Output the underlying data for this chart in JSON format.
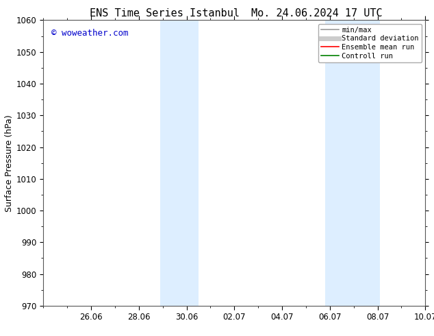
{
  "title_left": "ENS Time Series Istanbul",
  "title_right": "Mo. 24.06.2024 17 UTC",
  "ylabel": "Surface Pressure (hPa)",
  "ylim": [
    970,
    1060
  ],
  "yticks": [
    970,
    980,
    990,
    1000,
    1010,
    1020,
    1030,
    1040,
    1050,
    1060
  ],
  "xlim": [
    0,
    16
  ],
  "xtick_positions": [
    2,
    4,
    6,
    8,
    10,
    12,
    14,
    16
  ],
  "xtick_labels": [
    "26.06",
    "28.06",
    "30.06",
    "02.07",
    "04.07",
    "06.07",
    "08.07",
    "10.07"
  ],
  "shaded_regions": [
    {
      "start": 4.9,
      "end": 5.5
    },
    {
      "start": 5.5,
      "end": 6.5
    },
    {
      "start": 11.8,
      "end": 12.5
    },
    {
      "start": 12.5,
      "end": 14.1
    }
  ],
  "shaded_color": "#ddeeff",
  "watermark_text": "© woweather.com",
  "watermark_color": "#0000cc",
  "watermark_fontsize": 9,
  "legend_entries": [
    {
      "label": "min/max",
      "color": "#999999",
      "linewidth": 1.2,
      "linestyle": "-"
    },
    {
      "label": "Standard deviation",
      "color": "#cccccc",
      "linewidth": 5,
      "linestyle": "-"
    },
    {
      "label": "Ensemble mean run",
      "color": "red",
      "linewidth": 1.2,
      "linestyle": "-"
    },
    {
      "label": "Controll run",
      "color": "green",
      "linewidth": 1.2,
      "linestyle": "-"
    }
  ],
  "bg_color": "#ffffff",
  "title_fontsize": 11,
  "axis_label_fontsize": 9,
  "tick_fontsize": 8.5,
  "legend_fontsize": 7.5
}
